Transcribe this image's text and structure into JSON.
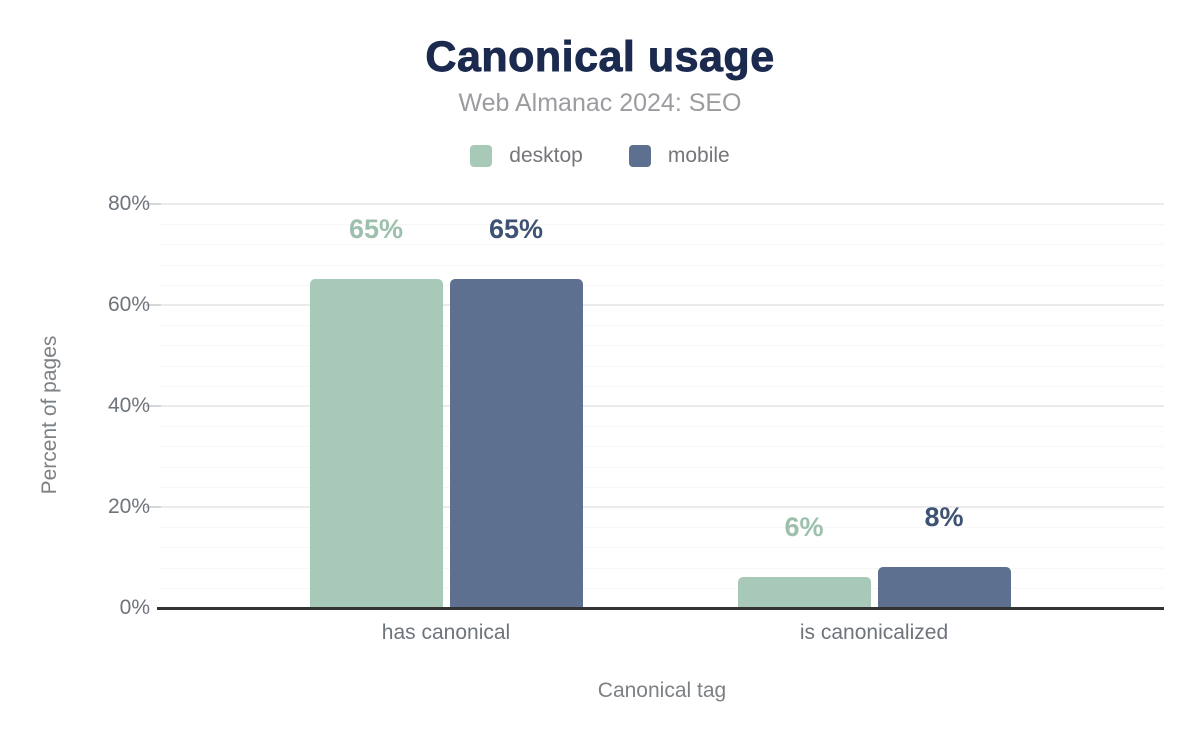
{
  "title": "Canonical usage",
  "subtitle": "Web Almanac 2024: SEO",
  "legend": [
    {
      "label": "desktop",
      "color": "#a9c9b8"
    },
    {
      "label": "mobile",
      "color": "#5d708f"
    }
  ],
  "chart_data": {
    "type": "bar",
    "title": "Canonical usage",
    "subtitle": "Web Almanac 2024: SEO",
    "categories": [
      "has canonical",
      "is canonicalized"
    ],
    "series": [
      {
        "name": "desktop",
        "values": [
          65,
          6
        ],
        "color": "#a9c9b8",
        "label_color": "#9dc0ad"
      },
      {
        "name": "mobile",
        "values": [
          65,
          8
        ],
        "color": "#5d708f",
        "label_color": "#3e5273"
      }
    ],
    "data_labels": [
      [
        "65%",
        "6%"
      ],
      [
        "65%",
        "8%"
      ]
    ],
    "xlabel": "Canonical tag",
    "ylabel": "Percent of pages",
    "ylim": [
      0,
      80
    ],
    "yticks": [
      0,
      20,
      40,
      60,
      80
    ],
    "ytick_labels": [
      "0%",
      "20%",
      "40%",
      "60%",
      "80%"
    ],
    "minor_grid_step_pct": 4,
    "grid": true,
    "legend_position": "top"
  },
  "colors": {
    "title": "#1b2a4e",
    "subtitle": "#9b9ca0",
    "legend_text": "#74767a",
    "axis_tick_text": "#6e747c",
    "axis_title_text": "#7c8186",
    "category_text": "#6e747c",
    "baseline": "#333333",
    "grid_major": "#ebebeb",
    "grid_minor": "#f7f7f7",
    "tick_mark": "#d4d7d9",
    "background": "#ffffff"
  }
}
